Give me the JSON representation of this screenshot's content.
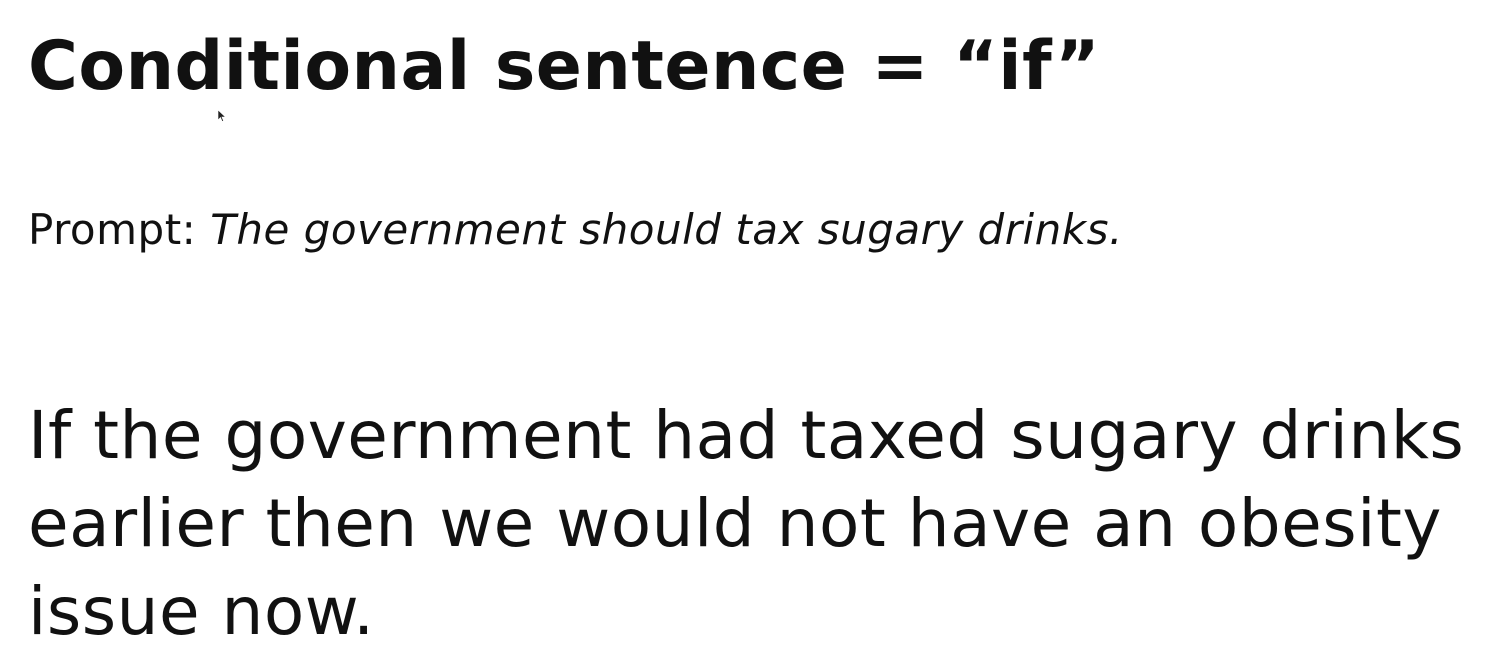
{
  "slide": {
    "title": "Conditional sentence = “if”",
    "prompt_label": "Prompt:",
    "prompt_text": "The government should tax sugary drinks.",
    "example_sentence": "If the government had taxed sugary drinks earlier then we would not have an obesity issue now."
  },
  "icons": {
    "cursor": "mouse-pointer-icon"
  }
}
